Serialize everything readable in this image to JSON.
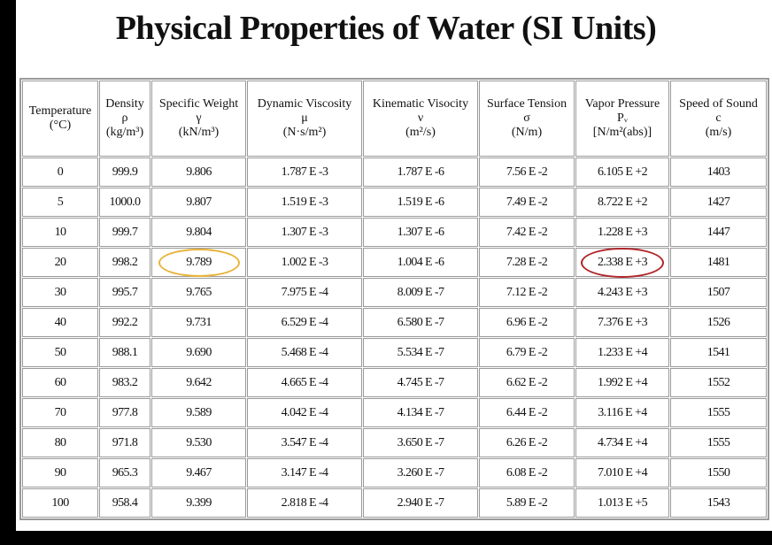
{
  "title": "Physical Properties of Water (SI Units)",
  "columns": [
    {
      "name": "Temperature",
      "symbol": "",
      "unit": "(°C)"
    },
    {
      "name": "Density",
      "symbol": "ρ",
      "unit": "(kg/m³)"
    },
    {
      "name": "Specific Weight",
      "symbol": "γ",
      "unit": "(kN/m³)"
    },
    {
      "name": "Dynamic Viscosity",
      "symbol": "μ",
      "unit": "(N·s/m²)"
    },
    {
      "name": "Kinematic Visocity",
      "symbol": "ν",
      "unit": "(m²/s)"
    },
    {
      "name": "Surface Tension",
      "symbol": "σ",
      "unit": "(N/m)"
    },
    {
      "name": "Vapor Pressure",
      "symbol": "Pᵥ",
      "unit": "[N/m²(abs)]"
    },
    {
      "name": "Speed of Sound",
      "symbol": "c",
      "unit": "(m/s)"
    }
  ],
  "rows": [
    [
      "0",
      "999.9",
      "9.806",
      "1.787 E -3",
      "1.787 E -6",
      "7.56 E -2",
      "6.105 E +2",
      "1403"
    ],
    [
      "5",
      "1000.0",
      "9.807",
      "1.519 E -3",
      "1.519 E -6",
      "7.49 E -2",
      "8.722 E +2",
      "1427"
    ],
    [
      "10",
      "999.7",
      "9.804",
      "1.307 E -3",
      "1.307 E -6",
      "7.42 E -2",
      "1.228 E +3",
      "1447"
    ],
    [
      "20",
      "998.2",
      "9.789",
      "1.002 E -3",
      "1.004 E -6",
      "7.28 E -2",
      "2.338 E +3",
      "1481"
    ],
    [
      "30",
      "995.7",
      "9.765",
      "7.975 E -4",
      "8.009 E -7",
      "7.12 E -2",
      "4.243 E +3",
      "1507"
    ],
    [
      "40",
      "992.2",
      "9.731",
      "6.529 E -4",
      "6.580 E -7",
      "6.96 E -2",
      "7.376 E +3",
      "1526"
    ],
    [
      "50",
      "988.1",
      "9.690",
      "5.468 E -4",
      "5.534 E -7",
      "6.79 E -2",
      "1.233 E +4",
      "1541"
    ],
    [
      "60",
      "983.2",
      "9.642",
      "4.665 E -4",
      "4.745 E -7",
      "6.62 E -2",
      "1.992 E +4",
      "1552"
    ],
    [
      "70",
      "977.8",
      "9.589",
      "4.042 E -4",
      "4.134 E -7",
      "6.44 E -2",
      "3.116 E +4",
      "1555"
    ],
    [
      "80",
      "971.8",
      "9.530",
      "3.547 E -4",
      "3.650 E -7",
      "6.26 E -2",
      "4.734 E +4",
      "1555"
    ],
    [
      "90",
      "965.3",
      "9.467",
      "3.147 E -4",
      "3.260 E -7",
      "6.08 E -2",
      "7.010 E +4",
      "1550"
    ],
    [
      "100",
      "958.4",
      "9.399",
      "2.818 E -4",
      "2.940 E -7",
      "5.89 E -2",
      "1.013 E +5",
      "1543"
    ]
  ],
  "highlights": [
    {
      "row": 3,
      "col": 2,
      "color": "#e8b33a"
    },
    {
      "row": 3,
      "col": 6,
      "color": "#b0262a"
    }
  ]
}
